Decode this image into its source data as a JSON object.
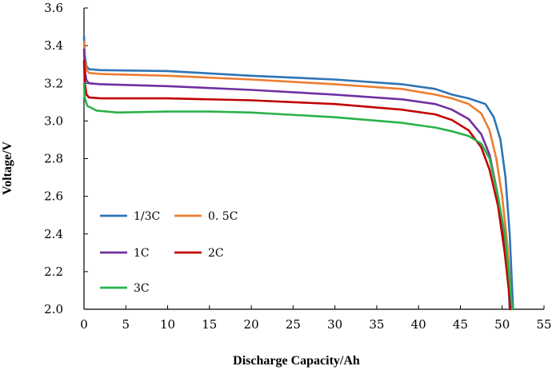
{
  "chart_data": {
    "type": "line",
    "title": "",
    "xlabel": "Discharge Capacity/Ah",
    "ylabel": "Voltage/V",
    "xlim": [
      0,
      55
    ],
    "ylim": [
      2.0,
      3.6
    ],
    "xticks": [
      "0",
      "5",
      "10",
      "15",
      "20",
      "25",
      "30",
      "35",
      "40",
      "45",
      "50",
      "55"
    ],
    "yticks": [
      "2.0",
      "2.2",
      "2.4",
      "2.6",
      "2.8",
      "3.0",
      "3.2",
      "3.4",
      "3.6"
    ],
    "grid": false,
    "legend_position": "lower-left",
    "series": [
      {
        "name": "1/3C",
        "color": "#2e74b5",
        "points": [
          [
            0,
            3.45
          ],
          [
            0.1,
            3.35
          ],
          [
            0.3,
            3.29
          ],
          [
            0.6,
            3.275
          ],
          [
            2,
            3.27
          ],
          [
            10,
            3.265
          ],
          [
            20,
            3.24
          ],
          [
            30,
            3.22
          ],
          [
            38,
            3.195
          ],
          [
            42,
            3.17
          ],
          [
            44,
            3.14
          ],
          [
            46,
            3.12
          ],
          [
            48,
            3.09
          ],
          [
            49,
            3.02
          ],
          [
            49.8,
            2.9
          ],
          [
            50.4,
            2.7
          ],
          [
            50.9,
            2.4
          ],
          [
            51.2,
            2.1
          ],
          [
            51.3,
            2.0
          ]
        ]
      },
      {
        "name": "0. 5C",
        "color": "#ed7d31",
        "points": [
          [
            0,
            3.42
          ],
          [
            0.1,
            3.32
          ],
          [
            0.3,
            3.27
          ],
          [
            0.6,
            3.255
          ],
          [
            2,
            3.25
          ],
          [
            10,
            3.24
          ],
          [
            20,
            3.22
          ],
          [
            30,
            3.195
          ],
          [
            38,
            3.17
          ],
          [
            42,
            3.14
          ],
          [
            44,
            3.12
          ],
          [
            46,
            3.09
          ],
          [
            47.5,
            3.04
          ],
          [
            48.5,
            2.95
          ],
          [
            49.3,
            2.8
          ],
          [
            50,
            2.6
          ],
          [
            50.6,
            2.35
          ],
          [
            51,
            2.1
          ],
          [
            51.1,
            2.0
          ]
        ]
      },
      {
        "name": "1C",
        "color": "#7030a0",
        "points": [
          [
            0,
            3.38
          ],
          [
            0.1,
            3.27
          ],
          [
            0.3,
            3.215
          ],
          [
            0.6,
            3.2
          ],
          [
            2,
            3.195
          ],
          [
            10,
            3.185
          ],
          [
            20,
            3.165
          ],
          [
            30,
            3.14
          ],
          [
            38,
            3.115
          ],
          [
            42,
            3.09
          ],
          [
            44,
            3.06
          ],
          [
            46,
            3.01
          ],
          [
            47.5,
            2.93
          ],
          [
            48.5,
            2.82
          ],
          [
            49.5,
            2.6
          ],
          [
            50.3,
            2.35
          ],
          [
            50.8,
            2.1
          ],
          [
            50.9,
            2.0
          ]
        ]
      },
      {
        "name": "2C",
        "color": "#c00000",
        "points": [
          [
            0,
            3.32
          ],
          [
            0.1,
            3.2
          ],
          [
            0.3,
            3.14
          ],
          [
            0.6,
            3.125
          ],
          [
            2,
            3.12
          ],
          [
            10,
            3.12
          ],
          [
            20,
            3.11
          ],
          [
            30,
            3.09
          ],
          [
            38,
            3.06
          ],
          [
            42,
            3.035
          ],
          [
            44,
            3.005
          ],
          [
            46,
            2.95
          ],
          [
            47.5,
            2.86
          ],
          [
            48.5,
            2.74
          ],
          [
            49.5,
            2.55
          ],
          [
            50.3,
            2.3
          ],
          [
            50.8,
            2.1
          ],
          [
            51,
            2.0
          ]
        ]
      },
      {
        "name": "3C",
        "color": "#2ab24a",
        "points": [
          [
            0,
            3.2
          ],
          [
            0.1,
            3.12
          ],
          [
            0.4,
            3.08
          ],
          [
            1.5,
            3.055
          ],
          [
            4,
            3.045
          ],
          [
            10,
            3.05
          ],
          [
            15,
            3.05
          ],
          [
            20,
            3.045
          ],
          [
            30,
            3.02
          ],
          [
            38,
            2.99
          ],
          [
            42,
            2.965
          ],
          [
            44,
            2.945
          ],
          [
            46,
            2.92
          ],
          [
            47.5,
            2.88
          ],
          [
            48.5,
            2.8
          ],
          [
            49.5,
            2.6
          ],
          [
            50.3,
            2.4
          ],
          [
            50.9,
            2.15
          ],
          [
            51.2,
            2.0
          ]
        ]
      }
    ]
  }
}
